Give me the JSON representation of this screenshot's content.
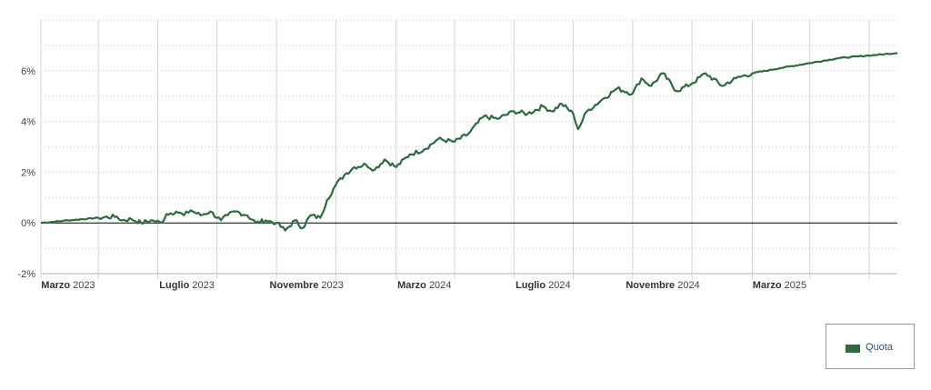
{
  "chart_data": {
    "type": "line",
    "title": "",
    "xlabel": "",
    "ylabel": "",
    "ylim": [
      -2,
      8
    ],
    "y_ticks": [
      -2,
      0,
      2,
      4,
      6
    ],
    "y_tick_format": "{v}%",
    "xlim": [
      "2023-02-01",
      "2025-06-30"
    ],
    "x_ticks": [
      {
        "date": "2023-03-01",
        "month": "Marzo",
        "year": "2023"
      },
      {
        "date": "2023-07-01",
        "month": "Luglio",
        "year": "2023"
      },
      {
        "date": "2023-11-01",
        "month": "Novembre",
        "year": "2023"
      },
      {
        "date": "2024-03-01",
        "month": "Marzo",
        "year": "2024"
      },
      {
        "date": "2024-07-01",
        "month": "Luglio",
        "year": "2024"
      },
      {
        "date": "2024-11-01",
        "month": "Novembre",
        "year": "2024"
      },
      {
        "date": "2025-03-01",
        "month": "Marzo",
        "year": "2025"
      }
    ],
    "vertical_gridlines": [
      "2023-02-01",
      "2023-04-01",
      "2023-06-01",
      "2023-08-01",
      "2023-10-01",
      "2023-12-01",
      "2024-02-01",
      "2024-04-01",
      "2024-06-01",
      "2024-08-01",
      "2024-10-01",
      "2024-12-01",
      "2025-02-01",
      "2025-04-01",
      "2025-06-01"
    ],
    "grid": true,
    "legend_position": "bottom-right",
    "series": [
      {
        "name": "Quota",
        "color": "#2e6b3e",
        "points": [
          [
            "2023-02-01",
            0.0
          ],
          [
            "2023-03-01",
            0.1
          ],
          [
            "2023-04-01",
            0.2
          ],
          [
            "2023-04-20",
            0.25
          ],
          [
            "2023-04-25",
            0.1
          ],
          [
            "2023-05-05",
            0.15
          ],
          [
            "2023-05-15",
            0.0
          ],
          [
            "2023-05-25",
            0.1
          ],
          [
            "2023-06-05",
            0.0
          ],
          [
            "2023-06-10",
            0.35
          ],
          [
            "2023-06-20",
            0.45
          ],
          [
            "2023-06-28",
            0.3
          ],
          [
            "2023-07-05",
            0.5
          ],
          [
            "2023-07-15",
            0.3
          ],
          [
            "2023-07-25",
            0.45
          ],
          [
            "2023-08-05",
            0.1
          ],
          [
            "2023-08-12",
            0.3
          ],
          [
            "2023-08-20",
            0.45
          ],
          [
            "2023-09-01",
            0.3
          ],
          [
            "2023-09-10",
            0.0
          ],
          [
            "2023-09-20",
            0.1
          ],
          [
            "2023-10-01",
            0.0
          ],
          [
            "2023-10-10",
            -0.3
          ],
          [
            "2023-10-20",
            0.1
          ],
          [
            "2023-10-28",
            -0.2
          ],
          [
            "2023-11-05",
            0.3
          ],
          [
            "2023-11-15",
            0.2
          ],
          [
            "2023-11-22",
            0.9
          ],
          [
            "2023-12-01",
            1.5
          ],
          [
            "2023-12-10",
            1.9
          ],
          [
            "2023-12-20",
            2.2
          ],
          [
            "2024-01-01",
            2.3
          ],
          [
            "2024-01-10",
            2.1
          ],
          [
            "2024-01-20",
            2.5
          ],
          [
            "2024-02-01",
            2.2
          ],
          [
            "2024-02-15",
            2.7
          ],
          [
            "2024-03-01",
            2.9
          ],
          [
            "2024-03-15",
            3.3
          ],
          [
            "2024-04-01",
            3.2
          ],
          [
            "2024-04-15",
            3.5
          ],
          [
            "2024-05-01",
            4.2
          ],
          [
            "2024-05-15",
            4.1
          ],
          [
            "2024-06-01",
            4.4
          ],
          [
            "2024-06-15",
            4.3
          ],
          [
            "2024-07-01",
            4.6
          ],
          [
            "2024-07-10",
            4.4
          ],
          [
            "2024-07-20",
            4.7
          ],
          [
            "2024-08-01",
            4.3
          ],
          [
            "2024-08-06",
            3.7
          ],
          [
            "2024-08-15",
            4.4
          ],
          [
            "2024-09-01",
            4.9
          ],
          [
            "2024-09-15",
            5.3
          ],
          [
            "2024-10-01",
            5.1
          ],
          [
            "2024-10-10",
            5.7
          ],
          [
            "2024-10-20",
            5.4
          ],
          [
            "2024-11-01",
            5.9
          ],
          [
            "2024-11-15",
            5.2
          ],
          [
            "2024-12-01",
            5.5
          ],
          [
            "2024-12-15",
            5.9
          ],
          [
            "2025-01-01",
            5.4
          ],
          [
            "2025-01-15",
            5.7
          ],
          [
            "2025-02-01",
            5.9
          ],
          [
            "2025-03-01",
            6.1
          ],
          [
            "2025-04-01",
            6.3
          ],
          [
            "2025-05-01",
            6.5
          ],
          [
            "2025-06-01",
            6.6
          ],
          [
            "2025-06-30",
            6.7
          ]
        ]
      }
    ]
  },
  "legend": {
    "label": "Quota",
    "color": "#2e6b3e"
  }
}
